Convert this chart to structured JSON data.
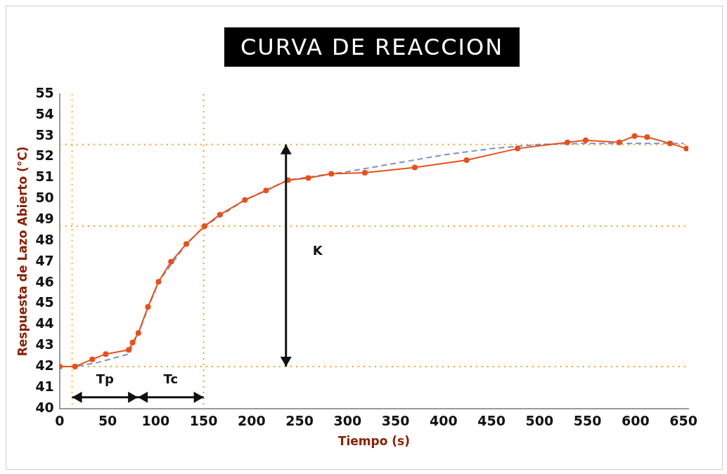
{
  "chart_data": {
    "type": "line",
    "title": "CURVA DE REACCION",
    "xlabel": "Tiempo (s)",
    "ylabel": "Respuesta de Lazo Abierto (°C)",
    "xlim": [
      0,
      655
    ],
    "xticks": [
      0,
      50,
      100,
      150,
      200,
      250,
      300,
      350,
      400,
      450,
      500,
      550,
      600,
      650
    ],
    "ylim": [
      40,
      55
    ],
    "yticks": [
      40,
      41,
      42,
      43,
      44,
      45,
      46,
      47,
      48,
      49,
      50,
      51,
      52,
      53,
      54,
      55
    ],
    "grid": false,
    "legend": false,
    "series": [
      {
        "color": "#e8501a",
        "marker": "circle",
        "line_style": "solid",
        "x": [
          0,
          16,
          34,
          48,
          72,
          76,
          82,
          92,
          103,
          116,
          132,
          151,
          167,
          193,
          215,
          238,
          259,
          283,
          318,
          370,
          424,
          477,
          529,
          548,
          583,
          599,
          612,
          636,
          653
        ],
        "values": [
          42.0,
          42.0,
          42.35,
          42.6,
          42.8,
          43.15,
          43.6,
          44.85,
          46.05,
          47.0,
          47.85,
          48.7,
          49.25,
          49.95,
          50.4,
          50.9,
          51.0,
          51.2,
          51.25,
          51.5,
          51.85,
          52.4,
          52.7,
          52.8,
          52.7,
          53.0,
          52.95,
          52.65,
          52.4
        ]
      },
      {
        "color": "#7f8fc0",
        "marker": "none",
        "line_style": "dashed",
        "x": [
          0,
          16,
          40,
          72,
          82,
          103,
          132,
          151,
          193,
          238,
          283,
          300,
          350,
          400,
          450,
          500,
          550,
          650
        ],
        "values": [
          42.0,
          42.0,
          42.2,
          42.6,
          43.6,
          46.05,
          47.85,
          48.7,
          49.95,
          50.9,
          51.2,
          51.3,
          51.7,
          52.1,
          52.4,
          52.6,
          52.65,
          52.65
        ]
      }
    ],
    "ref_lines": [
      {
        "axis": "y",
        "value": 42,
        "color": "#f0a020",
        "line_style": "dotted"
      },
      {
        "axis": "y",
        "value": 52.6,
        "color": "#f0a020",
        "line_style": "dotted"
      },
      {
        "axis": "y",
        "value": 48.7,
        "color": "#f0a020",
        "line_style": "dotted"
      },
      {
        "axis": "x",
        "value": 13,
        "color": "#f0c020",
        "line_style": "dotted"
      },
      {
        "axis": "x",
        "value": 150,
        "color": "#f0a020",
        "line_style": "dotted"
      }
    ],
    "annotations": [
      "Tp",
      "Tc",
      "K"
    ]
  }
}
